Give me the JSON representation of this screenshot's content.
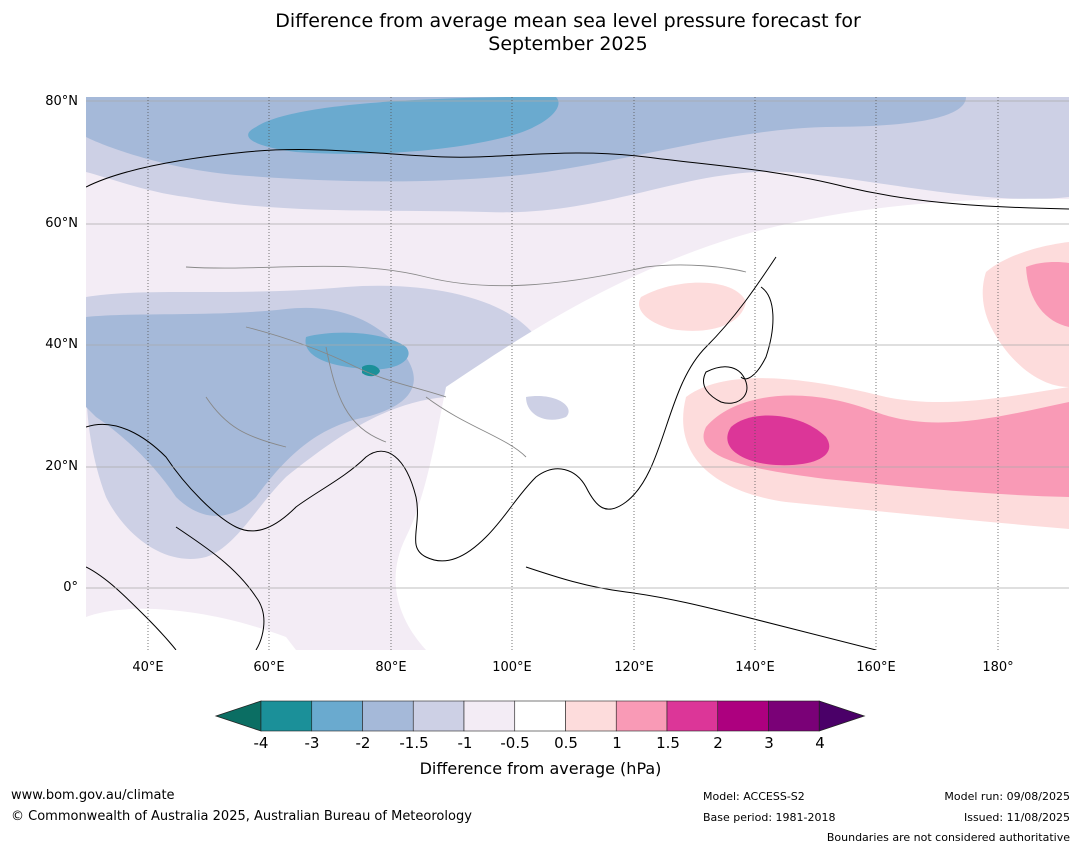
{
  "title_line1": "Difference from average mean sea level pressure forecast for",
  "title_line2": "September 2025",
  "lat_labels": [
    "80°N",
    "60°N",
    "40°N",
    "20°N",
    "0°"
  ],
  "lon_labels": [
    "40°E",
    "60°E",
    "80°E",
    "100°E",
    "120°E",
    "140°E",
    "160°E",
    "180°"
  ],
  "colorbar": {
    "ticks": [
      "-4",
      "-3",
      "-2",
      "-1.5",
      "-1",
      "-0.5",
      "0.5",
      "1",
      "1.5",
      "2",
      "3",
      "4"
    ],
    "colors": [
      "#0b6e63",
      "#1b9099",
      "#6aaacf",
      "#a5b9d9",
      "#cdd0e5",
      "#f3ecf5",
      "#ffffff",
      "#fddcdc",
      "#f99ab6",
      "#dc3698",
      "#ad007f",
      "#7a0177",
      "#4a0068"
    ],
    "label": "Difference from average (hPa)"
  },
  "footer": {
    "url": "www.bom.gov.au/climate",
    "copyright": "© Commonwealth of Australia 2025, Australian Bureau of Meteorology",
    "model": "Model: ACCESS-S2",
    "base_period": "Base period: 1981-2018",
    "model_run": "Model run: 09/08/2025",
    "issued": "Issued: 11/08/2025",
    "disclaimer": "Boundaries are not considered authoritative"
  }
}
